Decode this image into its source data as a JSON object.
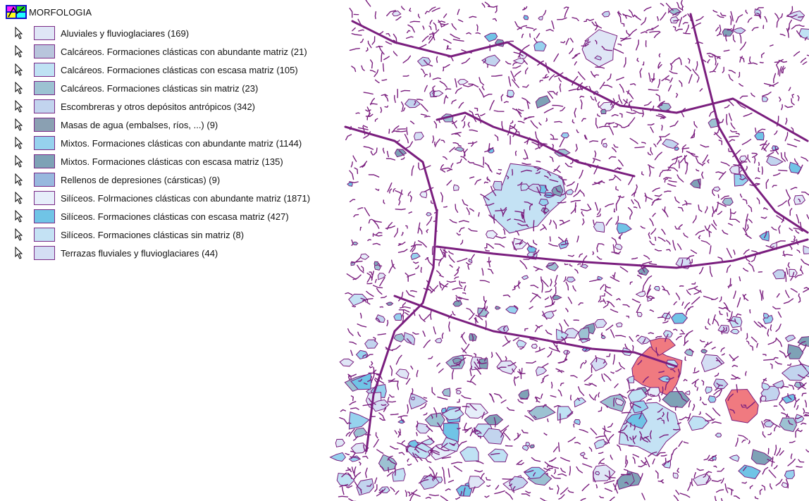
{
  "map": {
    "stroke_color": "#7a1e7e",
    "highlight_color": "#f07a80"
  },
  "legend": {
    "title": "MORFOLOGIA",
    "icon": "layer-icon",
    "cursor_icon": "pointer-cursor-icon",
    "items": [
      {
        "label": "Aluviales y fluvioglaciares (169)",
        "color": "#dfe6f6"
      },
      {
        "label": "Calcáreos. Formaciones clásticas con abundante matriz (21)",
        "color": "#b8c5dc"
      },
      {
        "label": "Calcáreos. Formaciones clásticas con escasa matriz (105)",
        "color": "#bfe2f4"
      },
      {
        "label": "Calcáreos. Formaciones clásticas sin matriz (23)",
        "color": "#9cc2d2"
      },
      {
        "label": "Escombreras y otros depósitos antrópicos (342)",
        "color": "#c2d4ee"
      },
      {
        "label": "Masas de agua (embalses, ríos, ...) (9)",
        "color": "#8aa0b2"
      },
      {
        "label": "Mixtos. Formaciones clásticas con abundante matriz (1144)",
        "color": "#96d2ee"
      },
      {
        "label": "Mixtos. Formaciones clásticas con escasa matriz (135)",
        "color": "#7ea2b6"
      },
      {
        "label": "Rellenos de depresiones (cársticas) (9)",
        "color": "#98b8de"
      },
      {
        "label": "Silíceos. Folrmaciones clásticas con abundante matriz (1871)",
        "color": "#e6eefa"
      },
      {
        "label": "Silíceos. Formaciones clásticas con escasa matriz (427)",
        "color": "#70c4e6"
      },
      {
        "label": "Silíceos. Formaciones clásticas sin matriz (8)",
        "color": "#c4e2f4"
      },
      {
        "label": "Terrazas fluviales y fluvioglaciares (44)",
        "color": "#d4def4"
      }
    ]
  }
}
